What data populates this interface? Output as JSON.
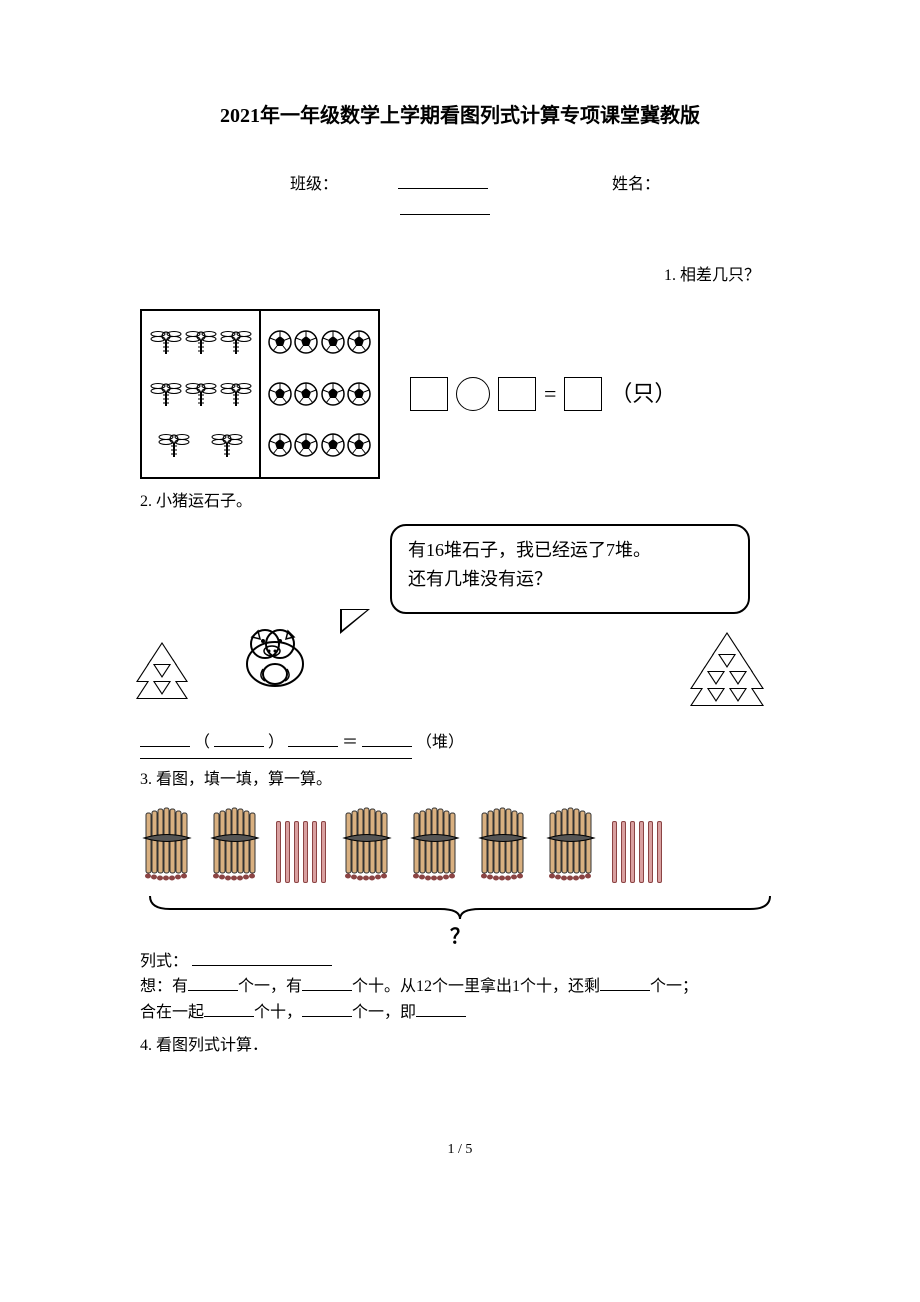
{
  "title": "2021年一年级数学上学期看图列式计算专项课堂冀教版",
  "form": {
    "class_label": "班级：",
    "name_label": "姓名："
  },
  "q1": {
    "label": "1. 相差几只？",
    "dragonfly_count": 8,
    "soccer_count": 12,
    "unit": "（只）",
    "equals": "="
  },
  "q2": {
    "label": "2. 小猪运石子。",
    "speech_line1": "有16堆石子，我已经运了7堆。",
    "speech_line2": "还有几堆没有运？",
    "answer_open": "（",
    "answer_close": "）",
    "answer_equals": "＝",
    "answer_unit": "（堆）",
    "pile_left": {
      "rows": [
        [
          1
        ],
        [
          2
        ],
        [
          2
        ]
      ]
    },
    "pile_right": {
      "rows": [
        [
          1
        ],
        [
          2
        ],
        [
          3
        ],
        [
          3
        ]
      ]
    }
  },
  "q3": {
    "label": "3. 看图，填一填，算一算。",
    "bundles_section1": 2,
    "loose_section1": 6,
    "bundles_section2": 4,
    "loose_section2": 6,
    "brace_mark": "？",
    "formula_label": "列式：",
    "think_line1_p1": "想：有",
    "think_line1_p2": "个一，有",
    "think_line1_p3": "个十。从12个一里拿出1个十，还剩",
    "think_line1_p4": "个一；",
    "think_line2_p1": "合在一起",
    "think_line2_p2": "个十，",
    "think_line2_p3": "个一，即"
  },
  "q4": {
    "label": "4. 看图列式计算．"
  },
  "footer": "1 / 5",
  "colors": {
    "page_bg": "#ffffff",
    "text": "#000000",
    "stick_fill": "#d9a0a0",
    "stick_border": "#8b4444"
  },
  "fonts": {
    "body_family": "SimSun",
    "title_size_pt": 15,
    "body_size_pt": 12
  }
}
